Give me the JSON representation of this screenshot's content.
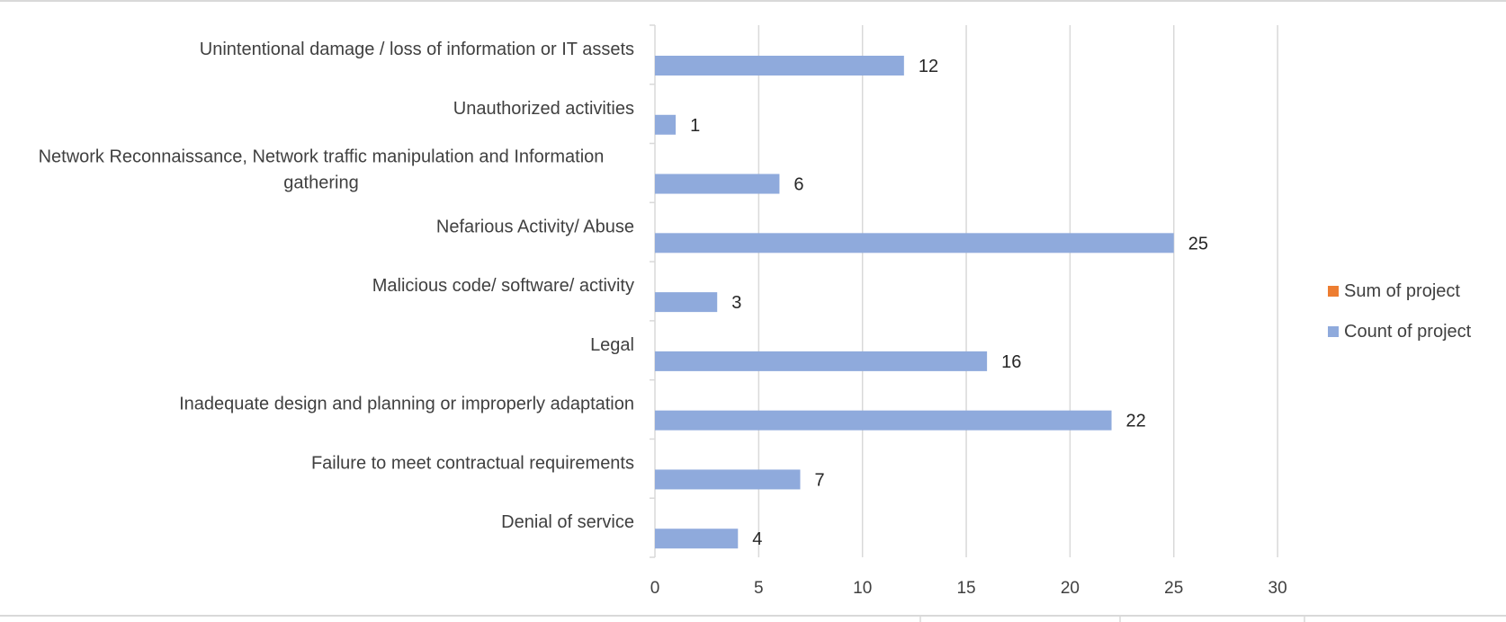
{
  "chart_data": {
    "type": "bar",
    "orientation": "horizontal",
    "title": "",
    "xlabel": "",
    "ylabel": "",
    "xlim": [
      0,
      30
    ],
    "ticks": [
      0,
      5,
      10,
      15,
      20,
      25,
      30
    ],
    "grid": true,
    "legend_position": "right",
    "categories": [
      "Unintentional damage / loss of information or IT assets",
      "Unauthorized activities",
      "Network Reconnaissance, Network traffic manipulation and Information gathering",
      "Nefarious Activity/ Abuse",
      "Malicious code/ software/ activity",
      "Legal",
      "Inadequate design and planning or improperly adaptation",
      "Failure to meet contractual requirements",
      "Denial of service"
    ],
    "category_lines": [
      [
        "Unintentional damage / loss of information or IT assets"
      ],
      [
        "Unauthorized activities"
      ],
      [
        "Network Reconnaissance, Network traffic manipulation and Information",
        "gathering"
      ],
      [
        "Nefarious Activity/ Abuse"
      ],
      [
        "Malicious code/ software/ activity"
      ],
      [
        "Legal"
      ],
      [
        "Inadequate design and planning or improperly adaptation"
      ],
      [
        "Failure to meet contractual requirements"
      ],
      [
        "Denial of service"
      ]
    ],
    "series": [
      {
        "name": "Sum of project",
        "color": "#ED7D31",
        "values": [
          null,
          null,
          null,
          null,
          null,
          null,
          null,
          null,
          null
        ]
      },
      {
        "name": "Count of project",
        "color": "#8FAADC",
        "values": [
          12,
          1,
          6,
          25,
          3,
          16,
          22,
          7,
          4
        ]
      }
    ]
  }
}
